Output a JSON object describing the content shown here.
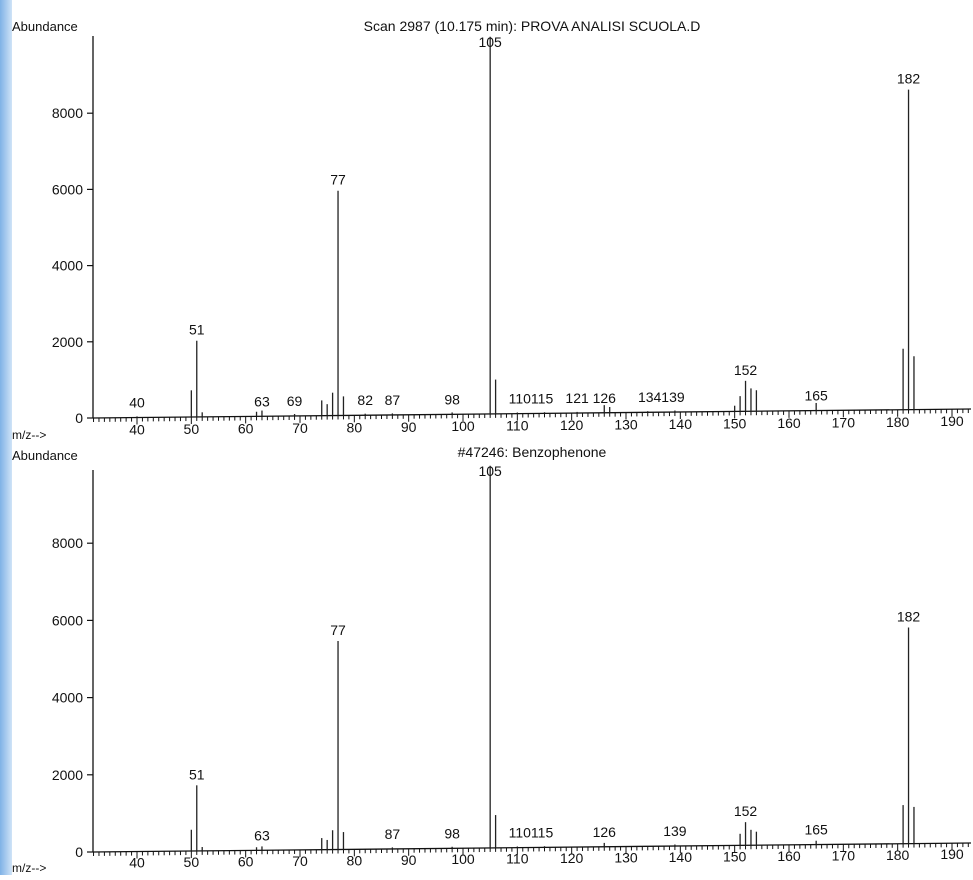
{
  "chart_data": [
    {
      "type": "bar",
      "title": "Scan 2987 (10.175 min): PROVA ANALISI SCUOLA.D",
      "ylabel": "Abundance",
      "xlabel": "m/z-->",
      "xlim": [
        30,
        193
      ],
      "ylim": [
        0,
        10000
      ],
      "y_ticks": [
        0,
        2000,
        4000,
        6000,
        8000
      ],
      "x_ticks": [
        40,
        50,
        60,
        70,
        80,
        90,
        100,
        110,
        120,
        130,
        140,
        150,
        160,
        170,
        180,
        190
      ],
      "peak_labels": [
        "40",
        "51",
        "63",
        "69",
        "77",
        "82",
        "87",
        "98",
        "105",
        "110115",
        "121",
        "126",
        "134139",
        "152",
        "165",
        "182"
      ],
      "peaks": [
        {
          "mz": 40,
          "abundance": 30
        },
        {
          "mz": 50,
          "abundance": 700
        },
        {
          "mz": 51,
          "abundance": 2000
        },
        {
          "mz": 52,
          "abundance": 120
        },
        {
          "mz": 62,
          "abundance": 120
        },
        {
          "mz": 63,
          "abundance": 150
        },
        {
          "mz": 69,
          "abundance": 50
        },
        {
          "mz": 74,
          "abundance": 400
        },
        {
          "mz": 75,
          "abundance": 300
        },
        {
          "mz": 76,
          "abundance": 600
        },
        {
          "mz": 77,
          "abundance": 5900
        },
        {
          "mz": 78,
          "abundance": 500
        },
        {
          "mz": 82,
          "abundance": 40
        },
        {
          "mz": 87,
          "abundance": 40
        },
        {
          "mz": 98,
          "abundance": 50
        },
        {
          "mz": 105,
          "abundance": 9900
        },
        {
          "mz": 106,
          "abundance": 900
        },
        {
          "mz": 110,
          "abundance": 30
        },
        {
          "mz": 115,
          "abundance": 30
        },
        {
          "mz": 121,
          "abundance": 30
        },
        {
          "mz": 126,
          "abundance": 200
        },
        {
          "mz": 127,
          "abundance": 150
        },
        {
          "mz": 134,
          "abundance": 30
        },
        {
          "mz": 139,
          "abundance": 40
        },
        {
          "mz": 150,
          "abundance": 150
        },
        {
          "mz": 151,
          "abundance": 400
        },
        {
          "mz": 152,
          "abundance": 800
        },
        {
          "mz": 153,
          "abundance": 600
        },
        {
          "mz": 154,
          "abundance": 550
        },
        {
          "mz": 165,
          "abundance": 200
        },
        {
          "mz": 181,
          "abundance": 1600
        },
        {
          "mz": 182,
          "abundance": 8400
        },
        {
          "mz": 183,
          "abundance": 1400
        }
      ]
    },
    {
      "type": "bar",
      "title": "#47246: Benzophenone",
      "ylabel": "Abundance",
      "xlabel": "m/z-->",
      "xlim": [
        30,
        193
      ],
      "ylim": [
        0,
        10000
      ],
      "y_ticks": [
        0,
        2000,
        4000,
        6000,
        8000
      ],
      "x_ticks": [
        40,
        50,
        60,
        70,
        80,
        90,
        100,
        110,
        120,
        130,
        140,
        150,
        160,
        170,
        180,
        190
      ],
      "peak_labels": [
        "51",
        "63",
        "77",
        "87",
        "98",
        "105",
        "110115",
        "126",
        "139",
        "152",
        "165",
        "182"
      ],
      "peaks": [
        {
          "mz": 50,
          "abundance": 550
        },
        {
          "mz": 51,
          "abundance": 1700
        },
        {
          "mz": 52,
          "abundance": 100
        },
        {
          "mz": 62,
          "abundance": 80
        },
        {
          "mz": 63,
          "abundance": 100
        },
        {
          "mz": 74,
          "abundance": 300
        },
        {
          "mz": 75,
          "abundance": 250
        },
        {
          "mz": 76,
          "abundance": 500
        },
        {
          "mz": 77,
          "abundance": 5400
        },
        {
          "mz": 78,
          "abundance": 450
        },
        {
          "mz": 87,
          "abundance": 40
        },
        {
          "mz": 98,
          "abundance": 40
        },
        {
          "mz": 105,
          "abundance": 9900
        },
        {
          "mz": 106,
          "abundance": 850
        },
        {
          "mz": 110,
          "abundance": 30
        },
        {
          "mz": 115,
          "abundance": 30
        },
        {
          "mz": 126,
          "abundance": 100
        },
        {
          "mz": 139,
          "abundance": 40
        },
        {
          "mz": 151,
          "abundance": 300
        },
        {
          "mz": 152,
          "abundance": 600
        },
        {
          "mz": 153,
          "abundance": 400
        },
        {
          "mz": 154,
          "abundance": 350
        },
        {
          "mz": 165,
          "abundance": 100
        },
        {
          "mz": 181,
          "abundance": 1000
        },
        {
          "mz": 182,
          "abundance": 5600
        },
        {
          "mz": 183,
          "abundance": 950
        }
      ]
    }
  ]
}
